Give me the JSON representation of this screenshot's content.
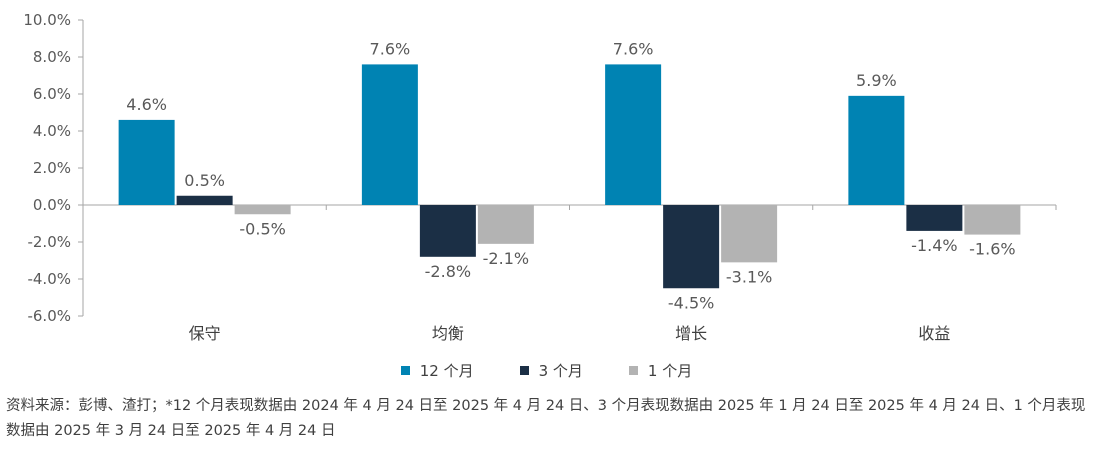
{
  "chart_data": {
    "type": "bar",
    "categories": [
      "保守",
      "均衡",
      "增长",
      "收益"
    ],
    "series": [
      {
        "name": "12 个月",
        "color": "#0083b3",
        "values": [
          4.6,
          7.6,
          7.6,
          5.9
        ],
        "labels": [
          "4.6%",
          "7.6%",
          "7.6%",
          "5.9%"
        ]
      },
      {
        "name": "3 个月",
        "color": "#1b2f45",
        "values": [
          0.5,
          -2.8,
          -4.5,
          -1.4
        ],
        "labels": [
          "0.5%",
          "-2.8%",
          "-4.5%",
          "-1.4%"
        ]
      },
      {
        "name": "1 个月",
        "color": "#b3b3b3",
        "values": [
          -0.5,
          -2.1,
          -3.1,
          -1.6
        ],
        "labels": [
          "-0.5%",
          "-2.1%",
          "-3.1%",
          "-1.6%"
        ]
      }
    ],
    "yticks": [
      "10.0%",
      "8.0%",
      "6.0%",
      "4.0%",
      "2.0%",
      "0.0%",
      "-2.0%",
      "-4.0%",
      "-6.0%"
    ],
    "ytick_values": [
      10,
      8,
      6,
      4,
      2,
      0,
      -2,
      -4,
      -6
    ],
    "ylim": [
      -6,
      10
    ],
    "legend_position": "bottom",
    "grid": false
  },
  "footnote": "资料来源：彭博、渣打；*12 个月表现数据由 2024 年 4 月 24 日至 2025 年 4 月 24 日、3 个月表现数据由 2025 年 1 月 24 日至 2025 年 4 月 24 日、1 个月表现数据由 2025 年 3 月 24 日至 2025 年 4 月 24 日"
}
